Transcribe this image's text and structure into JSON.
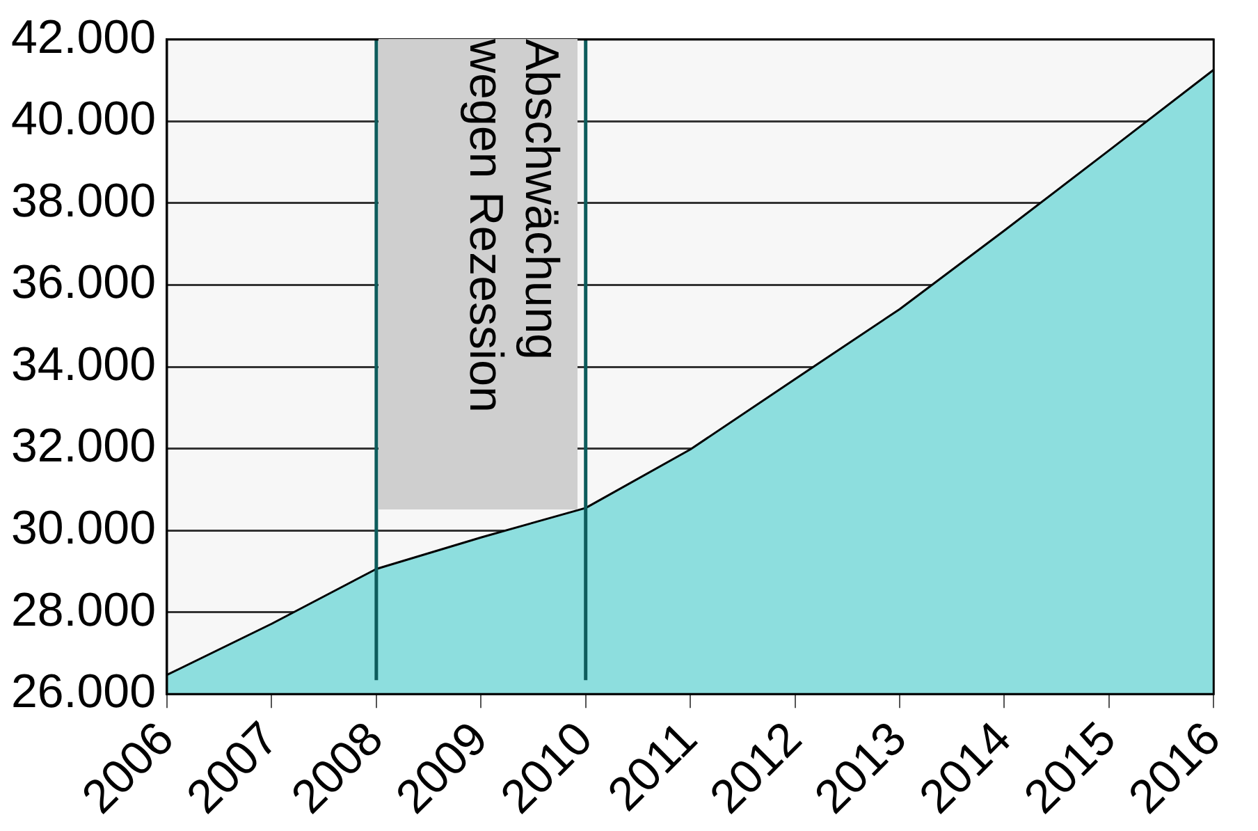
{
  "chart_data": {
    "type": "area",
    "categories": [
      "2006",
      "2007",
      "2008",
      "2009",
      "2010",
      "2011",
      "2012",
      "2013",
      "2014",
      "2015",
      "2016"
    ],
    "series": [
      {
        "color": "#8ddede",
        "values": [
          26470,
          27720,
          29060,
          29830,
          30550,
          31980,
          33700,
          35410,
          37330,
          39290,
          41260
        ]
      }
    ],
    "ylim": [
      26000,
      42000
    ],
    "yticks": [
      {
        "value": 26000,
        "label": "26.000"
      },
      {
        "value": 28000,
        "label": "28.000"
      },
      {
        "value": 30000,
        "label": "30.000"
      },
      {
        "value": 32000,
        "label": "32.000"
      },
      {
        "value": 34000,
        "label": "34.000"
      },
      {
        "value": 36000,
        "label": "36.000"
      },
      {
        "value": 38000,
        "label": "38.000"
      },
      {
        "value": 40000,
        "label": "40.000"
      },
      {
        "value": 42000,
        "label": "42.000"
      }
    ],
    "grid": "y",
    "legend": false,
    "marker": "none",
    "line_style": "solid",
    "ref_lines": [
      {
        "axis": "x",
        "value": "2008",
        "color": "#0e5c5c"
      },
      {
        "axis": "x",
        "value": "2010",
        "color": "#0e5c5c"
      }
    ],
    "annotations": [
      "Abschwächung wegen Rezession"
    ]
  }
}
